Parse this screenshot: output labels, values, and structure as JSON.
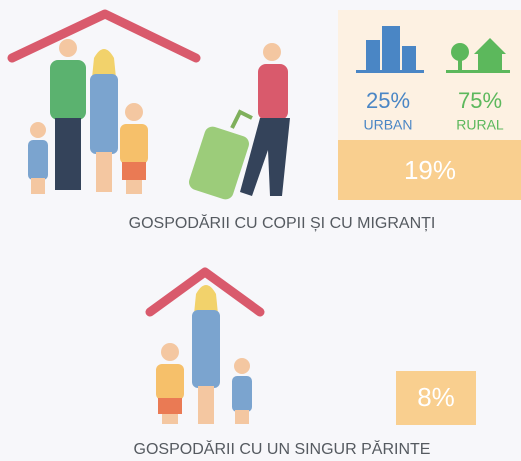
{
  "sections": [
    {
      "caption": "GOSPODĂRII CU COPII ȘI CU MIGRANȚI",
      "total": "19%",
      "breakdown": [
        {
          "value": "25%",
          "label": "URBAN"
        },
        {
          "value": "75%",
          "label": "RURAL"
        }
      ]
    },
    {
      "caption": "GOSPODĂRII CU UN SINGUR PĂRINTE",
      "total": "8%"
    }
  ]
}
